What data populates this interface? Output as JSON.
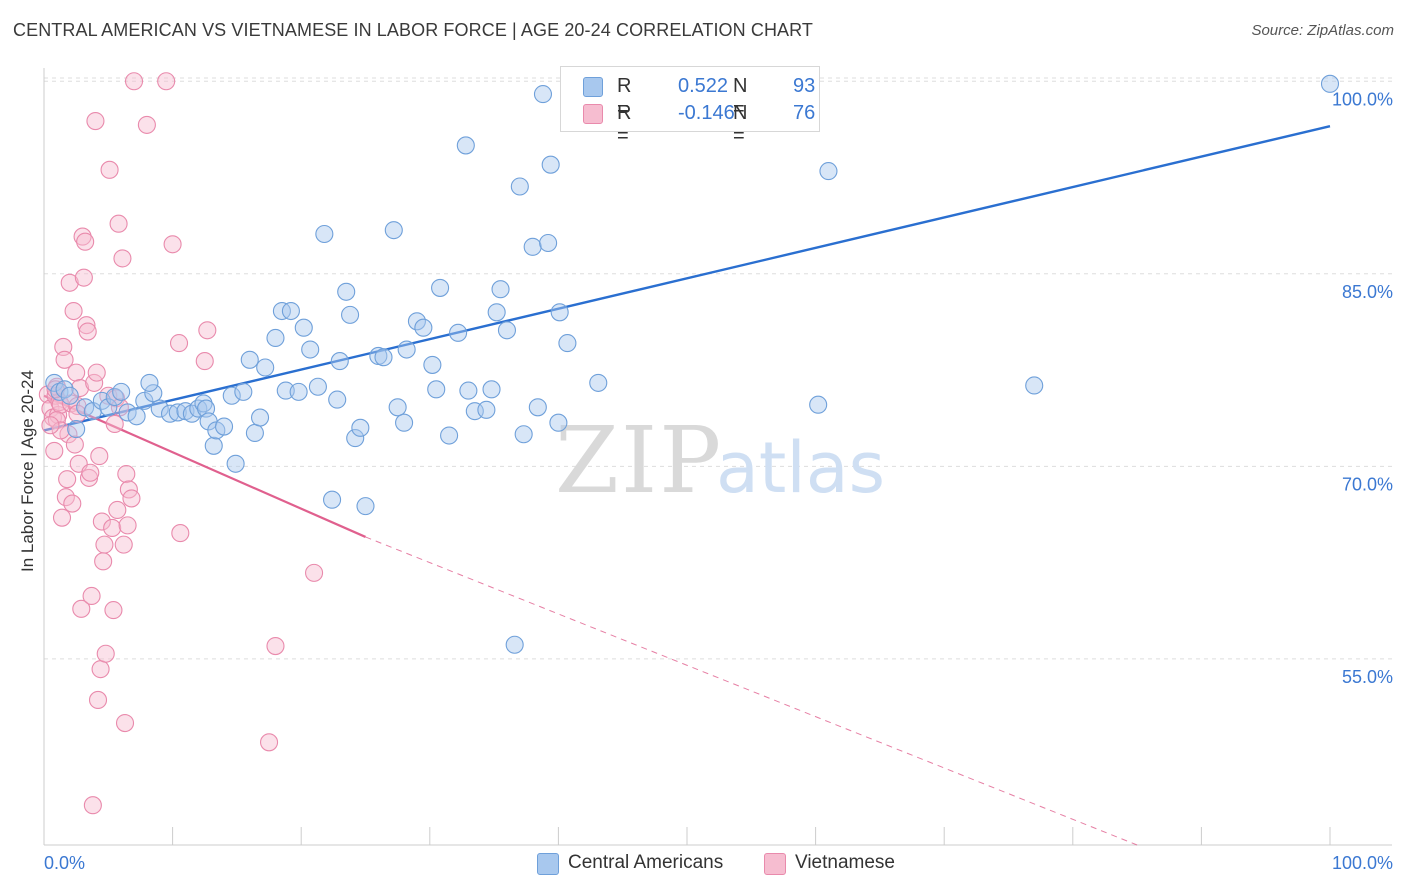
{
  "header": {
    "title": "CENTRAL AMERICAN VS VIETNAMESE IN LABOR FORCE | AGE 20-24 CORRELATION CHART",
    "source": "Source: ZipAtlas.com"
  },
  "watermark": {
    "zip": "ZIP",
    "atlas": "atlas"
  },
  "legend_top": {
    "rows": [
      {
        "r_label": "R =",
        "r_value": "0.522",
        "n_label": "N =",
        "n_value": "93"
      },
      {
        "r_label": "R =",
        "r_value": "-0.146",
        "n_label": "N =",
        "n_value": "76"
      }
    ]
  },
  "legend_bottom": {
    "items": [
      {
        "label": "Central Americans"
      },
      {
        "label": "Vietnamese"
      }
    ]
  },
  "colors": {
    "blue_fill": "#a8c8ee",
    "blue_stroke": "#6fa0da",
    "blue_line": "#2a6fd0",
    "pink_fill": "#f6bdd0",
    "pink_stroke": "#e98aac",
    "pink_line": "#e0608e",
    "tick_text": "#3b78d2",
    "grid": "#dddddd"
  },
  "chart_data": {
    "type": "scatter",
    "title": "CENTRAL AMERICAN VS VIETNAMESE IN LABOR FORCE | AGE 20-24 CORRELATION CHART",
    "xlabel": "",
    "ylabel": "In Labor Force | Age 20-24",
    "xlim": [
      0,
      100
    ],
    "ylim": [
      40.5,
      101.5
    ],
    "x_tick_labels": [
      "0.0%",
      "100.0%"
    ],
    "y_ticks": [
      55,
      70,
      85,
      100
    ],
    "y_tick_labels": [
      "55.0%",
      "70.0%",
      "85.0%",
      "100.0%"
    ],
    "grid": true,
    "legend_position": "top-center",
    "series": [
      {
        "name": "Central Americans",
        "R": 0.522,
        "N": 93,
        "trend": {
          "x": [
            0,
            100
          ],
          "y": [
            72.8,
            96.5
          ]
        },
        "points": [
          [
            0.8,
            76.5
          ],
          [
            1.2,
            75.8
          ],
          [
            1.6,
            76.0
          ],
          [
            2.0,
            75.5
          ],
          [
            2.5,
            72.9
          ],
          [
            3.2,
            74.6
          ],
          [
            3.8,
            74.3
          ],
          [
            4.5,
            75.1
          ],
          [
            5.0,
            74.6
          ],
          [
            5.5,
            75.4
          ],
          [
            6.0,
            75.8
          ],
          [
            6.5,
            74.2
          ],
          [
            7.2,
            73.9
          ],
          [
            7.8,
            75.1
          ],
          [
            8.5,
            75.7
          ],
          [
            8.2,
            76.5
          ],
          [
            9.0,
            74.5
          ],
          [
            9.8,
            74.1
          ],
          [
            10.4,
            74.2
          ],
          [
            11.0,
            74.3
          ],
          [
            11.5,
            74.1
          ],
          [
            12.0,
            74.5
          ],
          [
            12.4,
            74.9
          ],
          [
            12.6,
            74.5
          ],
          [
            12.8,
            73.5
          ],
          [
            13.2,
            71.6
          ],
          [
            13.4,
            72.8
          ],
          [
            14.0,
            73.1
          ],
          [
            14.6,
            75.5
          ],
          [
            14.9,
            70.2
          ],
          [
            15.5,
            75.8
          ],
          [
            16.0,
            78.3
          ],
          [
            16.4,
            72.6
          ],
          [
            16.8,
            73.8
          ],
          [
            17.2,
            77.7
          ],
          [
            18.0,
            80.0
          ],
          [
            18.5,
            82.1
          ],
          [
            18.8,
            75.9
          ],
          [
            19.2,
            82.1
          ],
          [
            19.8,
            75.8
          ],
          [
            20.2,
            80.8
          ],
          [
            20.7,
            79.1
          ],
          [
            21.3,
            76.2
          ],
          [
            21.8,
            88.1
          ],
          [
            22.4,
            67.4
          ],
          [
            22.8,
            75.2
          ],
          [
            23.0,
            78.2
          ],
          [
            23.5,
            83.6
          ],
          [
            23.8,
            81.8
          ],
          [
            24.2,
            72.2
          ],
          [
            24.6,
            73.0
          ],
          [
            25.0,
            66.9
          ],
          [
            26.0,
            78.6
          ],
          [
            26.4,
            78.5
          ],
          [
            27.2,
            88.4
          ],
          [
            27.5,
            74.6
          ],
          [
            28.0,
            73.4
          ],
          [
            28.2,
            79.1
          ],
          [
            29.0,
            81.3
          ],
          [
            29.5,
            80.8
          ],
          [
            30.2,
            77.9
          ],
          [
            30.5,
            76.0
          ],
          [
            30.8,
            83.9
          ],
          [
            31.5,
            72.4
          ],
          [
            32.2,
            80.4
          ],
          [
            32.8,
            95.0
          ],
          [
            33.0,
            75.9
          ],
          [
            33.5,
            74.3
          ],
          [
            34.4,
            74.4
          ],
          [
            34.8,
            76.0
          ],
          [
            35.2,
            82.0
          ],
          [
            35.5,
            83.8
          ],
          [
            36.0,
            80.6
          ],
          [
            36.6,
            56.1
          ],
          [
            37.0,
            91.8
          ],
          [
            37.3,
            72.5
          ],
          [
            38.0,
            87.1
          ],
          [
            38.4,
            74.6
          ],
          [
            39.2,
            87.4
          ],
          [
            39.4,
            93.5
          ],
          [
            40.0,
            73.4
          ],
          [
            40.1,
            82.0
          ],
          [
            40.7,
            79.6
          ],
          [
            43.1,
            76.5
          ],
          [
            46.2,
            99.5
          ],
          [
            55.7,
            99.5
          ],
          [
            60.2,
            74.8
          ],
          [
            61.0,
            93.0
          ],
          [
            77.0,
            76.3
          ],
          [
            100.0,
            99.8
          ],
          [
            44.2,
            100.0
          ],
          [
            46.5,
            97.6
          ],
          [
            38.8,
            99.0
          ]
        ]
      },
      {
        "name": "Vietnamese",
        "R": -0.146,
        "N": 76,
        "trend": {
          "x": [
            0,
            25.0
          ],
          "y": [
            75.5,
            64.5
          ]
        },
        "trend_extension": {
          "x": [
            25.0,
            85.0
          ],
          "y": [
            64.5,
            40.5
          ]
        },
        "points": [
          [
            0.3,
            75.6
          ],
          [
            0.5,
            74.5
          ],
          [
            0.7,
            73.8
          ],
          [
            0.8,
            71.2
          ],
          [
            0.9,
            75.5
          ],
          [
            1.0,
            76.2
          ],
          [
            1.1,
            74.0
          ],
          [
            1.2,
            75.0
          ],
          [
            1.3,
            74.8
          ],
          [
            1.4,
            66.0
          ],
          [
            1.5,
            79.3
          ],
          [
            1.6,
            78.3
          ],
          [
            1.7,
            67.6
          ],
          [
            1.8,
            69.0
          ],
          [
            1.9,
            72.5
          ],
          [
            2.0,
            84.3
          ],
          [
            2.1,
            74.9
          ],
          [
            2.2,
            67.1
          ],
          [
            2.3,
            82.1
          ],
          [
            2.4,
            71.7
          ],
          [
            2.5,
            77.3
          ],
          [
            2.6,
            74.7
          ],
          [
            2.7,
            70.2
          ],
          [
            2.8,
            76.1
          ],
          [
            2.9,
            58.9
          ],
          [
            3.0,
            87.9
          ],
          [
            3.1,
            84.7
          ],
          [
            3.2,
            87.5
          ],
          [
            3.3,
            81.0
          ],
          [
            3.4,
            80.5
          ],
          [
            3.5,
            69.1
          ],
          [
            3.6,
            69.5
          ],
          [
            3.7,
            59.9
          ],
          [
            3.8,
            43.6
          ],
          [
            3.9,
            76.5
          ],
          [
            4.0,
            96.9
          ],
          [
            4.1,
            77.3
          ],
          [
            4.2,
            51.8
          ],
          [
            4.3,
            70.8
          ],
          [
            4.4,
            54.2
          ],
          [
            4.5,
            65.7
          ],
          [
            4.6,
            62.6
          ],
          [
            4.7,
            63.9
          ],
          [
            4.8,
            55.4
          ],
          [
            5.0,
            75.5
          ],
          [
            5.1,
            93.1
          ],
          [
            5.3,
            65.2
          ],
          [
            5.4,
            58.8
          ],
          [
            5.5,
            73.3
          ],
          [
            5.6,
            75.3
          ],
          [
            5.7,
            66.6
          ],
          [
            5.8,
            88.9
          ],
          [
            5.9,
            74.6
          ],
          [
            6.1,
            86.2
          ],
          [
            6.2,
            63.9
          ],
          [
            6.3,
            50.0
          ],
          [
            6.4,
            69.4
          ],
          [
            6.5,
            65.4
          ],
          [
            6.6,
            68.2
          ],
          [
            6.8,
            67.5
          ],
          [
            7.0,
            100.0
          ],
          [
            8.0,
            96.6
          ],
          [
            9.5,
            100.0
          ],
          [
            10.0,
            87.3
          ],
          [
            10.5,
            79.6
          ],
          [
            10.6,
            64.8
          ],
          [
            12.5,
            78.2
          ],
          [
            12.7,
            80.6
          ],
          [
            17.5,
            48.5
          ],
          [
            18.0,
            56.0
          ],
          [
            21.0,
            61.7
          ],
          [
            1.0,
            73.6
          ],
          [
            1.3,
            72.8
          ],
          [
            2.6,
            74.1
          ],
          [
            0.5,
            73.2
          ],
          [
            0.9,
            76.0
          ]
        ]
      }
    ]
  }
}
